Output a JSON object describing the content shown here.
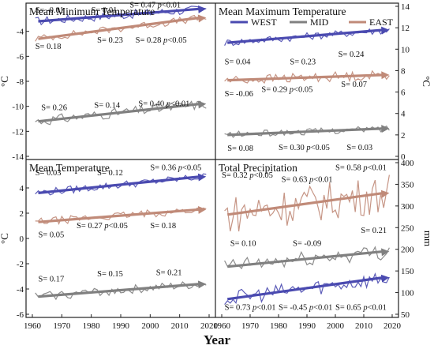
{
  "figure": {
    "xlabel": "Year",
    "legend": [
      {
        "name": "WEST",
        "color": "#4a4ab0"
      },
      {
        "name": "MID",
        "color": "#808080"
      },
      {
        "name": "EAST",
        "color": "#c08a78"
      }
    ]
  },
  "chart_data": [
    {
      "type": "line",
      "title": "Mean Minimum Temperature",
      "ylabel": "°C",
      "axis_side": "left",
      "ylim": [
        -14,
        -2
      ],
      "yticks": [
        -14,
        -12,
        -10,
        -8,
        -6,
        -4
      ],
      "x_range": [
        1960,
        2020
      ],
      "series": [
        {
          "name": "WEST",
          "color": "#4a4ab0",
          "trend": [
            -3.2,
            -2.2
          ],
          "noise": 0.35
        },
        {
          "name": "EAST",
          "color": "#c08a78",
          "trend": [
            -4.6,
            -2.9
          ],
          "noise": 0.3
        },
        {
          "name": "MID",
          "color": "#808080",
          "trend": [
            -11.2,
            -9.8
          ],
          "noise": 0.4
        }
      ],
      "slope_labels": [
        {
          "text": "S= -0.01",
          "x": 1961,
          "y": -2.5
        },
        {
          "text": "S= 0.01",
          "x": 1980,
          "y": -2.5
        },
        {
          "text": "S= 0.47 p<0.01",
          "x": 1993,
          "y": -2.1
        },
        {
          "text": "S= 0.18",
          "x": 1961,
          "y": -5.4
        },
        {
          "text": "S= 0.23",
          "x": 1982,
          "y": -4.9
        },
        {
          "text": "S= 0.28 p<0.05",
          "x": 1995,
          "y": -4.9
        },
        {
          "text": "S= 0.26",
          "x": 1963,
          "y": -10.3
        },
        {
          "text": "S= 0.14",
          "x": 1981,
          "y": -10.1
        },
        {
          "text": "S= 0.40 p<0.01",
          "x": 1996,
          "y": -10.0
        }
      ]
    },
    {
      "type": "line",
      "title": "Mean Maximum Temperature",
      "ylabel": "",
      "axis_side": "right",
      "ylim": [
        0,
        14
      ],
      "yticks": [
        0,
        2,
        4,
        6,
        8,
        10,
        12,
        14
      ],
      "x_range": [
        1960,
        2020
      ],
      "series": [
        {
          "name": "WEST",
          "color": "#4a4ab0",
          "trend": [
            10.6,
            11.8
          ],
          "noise": 0.35
        },
        {
          "name": "EAST",
          "color": "#c08a78",
          "trend": [
            7.1,
            7.6
          ],
          "noise": 0.45
        },
        {
          "name": "MID",
          "color": "#808080",
          "trend": [
            2.0,
            2.6
          ],
          "noise": 0.3
        }
      ],
      "slope_labels": [
        {
          "text": "S= 0.04",
          "x": 1961,
          "y": 8.6
        },
        {
          "text": "S= 0.23",
          "x": 1984,
          "y": 8.6
        },
        {
          "text": "S= 0.24",
          "x": 2001,
          "y": 9.3
        },
        {
          "text": "S= -0.06",
          "x": 1961,
          "y": 5.6
        },
        {
          "text": "S= 0.29 p<0.05",
          "x": 1974,
          "y": 6.0
        },
        {
          "text": "S= 0.07",
          "x": 2002,
          "y": 6.5
        },
        {
          "text": "S= 0.08",
          "x": 1962,
          "y": 0.5
        },
        {
          "text": "S= 0.30 p<0.05",
          "x": 1980,
          "y": 0.6
        },
        {
          "text": "S= 0.03",
          "x": 2004,
          "y": 0.6
        }
      ]
    },
    {
      "type": "line",
      "title": "Mean Temperature",
      "ylabel": "°C",
      "axis_side": "left",
      "ylim": [
        -6,
        6
      ],
      "yticks": [
        -6,
        -4,
        -2,
        0,
        2,
        4
      ],
      "x_range": [
        1960,
        2020
      ],
      "series": [
        {
          "name": "WEST",
          "color": "#4a4ab0",
          "trend": [
            3.6,
            4.9
          ],
          "noise": 0.3
        },
        {
          "name": "EAST",
          "color": "#c08a78",
          "trend": [
            1.3,
            2.3
          ],
          "noise": 0.3
        },
        {
          "name": "MID",
          "color": "#808080",
          "trend": [
            -4.6,
            -3.6
          ],
          "noise": 0.35
        }
      ],
      "slope_labels": [
        {
          "text": "S= 0.03",
          "x": 1961,
          "y": 5.0
        },
        {
          "text": "S= 0.12",
          "x": 1982,
          "y": 5.0
        },
        {
          "text": "S= 0.36 p<0.05",
          "x": 2000,
          "y": 5.4
        },
        {
          "text": "S= 0.05",
          "x": 1962,
          "y": 0.1
        },
        {
          "text": "S= 0.27 p<0.05",
          "x": 1975,
          "y": 0.8
        },
        {
          "text": "S= 0.18",
          "x": 2000,
          "y": 0.8
        },
        {
          "text": "S= 0.17",
          "x": 1962,
          "y": -3.4
        },
        {
          "text": "S= 0.15",
          "x": 1982,
          "y": -3.0
        },
        {
          "text": "S= 0.21",
          "x": 2002,
          "y": -2.9
        }
      ]
    },
    {
      "type": "line",
      "title": "Total Precipitation",
      "ylabel": "mm",
      "axis_side": "right",
      "ylim": [
        50,
        400
      ],
      "yticks": [
        50,
        100,
        150,
        200,
        250,
        300,
        350,
        400
      ],
      "x_range": [
        1960,
        2020
      ],
      "series": [
        {
          "name": "EAST",
          "color": "#c08a78",
          "trend": [
            280,
            330
          ],
          "noise": 45
        },
        {
          "name": "MID",
          "color": "#808080",
          "trend": [
            160,
            195
          ],
          "noise": 18
        },
        {
          "name": "WEST",
          "color": "#4a4ab0",
          "trend": [
            85,
            135
          ],
          "noise": 18
        }
      ],
      "slope_labels": [
        {
          "text": "S= 0.32 p<0.05",
          "x": 1960,
          "y": 365
        },
        {
          "text": "S= 0.63 p<0.01",
          "x": 1981,
          "y": 355
        },
        {
          "text": "S= 0.58 p<0.01",
          "x": 2000,
          "y": 383
        },
        {
          "text": "S= 0.10",
          "x": 1963,
          "y": 208
        },
        {
          "text": "S= -0.09",
          "x": 1985,
          "y": 208
        },
        {
          "text": "S= 0.21",
          "x": 2009,
          "y": 238
        },
        {
          "text": "S= 0.73 p<0.01",
          "x": 1961,
          "y": 60
        },
        {
          "text": "S= -0.45 p<0.01",
          "x": 1980,
          "y": 60
        },
        {
          "text": "S= 0.65 p<0.01",
          "x": 2000,
          "y": 60
        }
      ]
    }
  ]
}
